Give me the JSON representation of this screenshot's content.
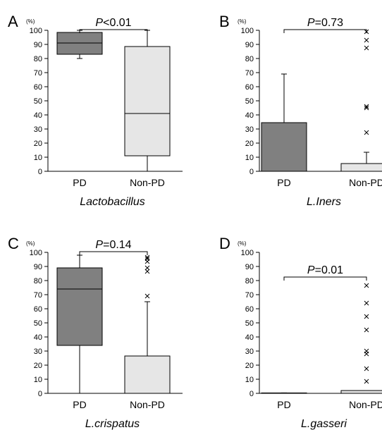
{
  "palette": {
    "pd_fill": "#808080",
    "nonpd_fill": "#e6e6e6",
    "stroke": "#000000"
  },
  "chart_data": [
    {
      "panel_label": "A",
      "type": "box",
      "title": "Lactobacillus",
      "unit_label": "(%)",
      "ylim": [
        0,
        100
      ],
      "yticks": [
        "0",
        "10",
        "20",
        "30",
        "40",
        "50",
        "60",
        "70",
        "80",
        "90",
        "100"
      ],
      "categories": [
        "PD",
        "Non-PD"
      ],
      "p_label": "P<0.01",
      "boxes": [
        {
          "category": "PD",
          "min": 80,
          "q1": 83,
          "median": 91,
          "q3": 98.5,
          "max": 100,
          "outliers": []
        },
        {
          "category": "Non-PD",
          "min": 0,
          "q1": 11,
          "median": 41,
          "q3": 88.5,
          "max": 100,
          "outliers": []
        }
      ]
    },
    {
      "panel_label": "B",
      "type": "box",
      "title": "L.Iners",
      "unit_label": "(%)",
      "ylim": [
        0,
        100
      ],
      "yticks": [
        "0",
        "10",
        "20",
        "30",
        "40",
        "50",
        "60",
        "70",
        "80",
        "90",
        "100"
      ],
      "categories": [
        "PD",
        "Non-PD"
      ],
      "p_label": "P=0.73",
      "boxes": [
        {
          "category": "PD",
          "min": 0,
          "q1": 0,
          "median": 0,
          "q3": 34.5,
          "max": 69,
          "outliers": []
        },
        {
          "category": "Non-PD",
          "min": 0,
          "q1": 0,
          "median": 0,
          "q3": 5.5,
          "max": 13.5,
          "outliers": [
            27.5,
            45,
            46,
            87.5,
            93,
            99
          ]
        }
      ]
    },
    {
      "panel_label": "C",
      "type": "box",
      "title": "L.crispatus",
      "unit_label": "(%)",
      "ylim": [
        0,
        100
      ],
      "yticks": [
        "0",
        "10",
        "20",
        "30",
        "40",
        "50",
        "60",
        "70",
        "80",
        "90",
        "100"
      ],
      "categories": [
        "PD",
        "Non-PD"
      ],
      "p_label": "P=0.14",
      "boxes": [
        {
          "category": "PD",
          "min": 0,
          "q1": 34,
          "median": 74,
          "q3": 89,
          "max": 98,
          "outliers": []
        },
        {
          "category": "Non-PD",
          "min": 0,
          "q1": 0,
          "median": 0,
          "q3": 26.5,
          "max": 65,
          "outliers": [
            69,
            86.5,
            89,
            93.5,
            95.5,
            96.5
          ]
        }
      ]
    },
    {
      "panel_label": "D",
      "type": "box",
      "title": "L.gasseri",
      "unit_label": "(%)",
      "ylim": [
        0,
        100
      ],
      "yticks": [
        "0",
        "10",
        "20",
        "30",
        "40",
        "50",
        "60",
        "70",
        "80",
        "90",
        "100"
      ],
      "categories": [
        "PD",
        "Non-PD"
      ],
      "p_label": "P=0.01",
      "boxes": [
        {
          "category": "PD",
          "min": 0,
          "q1": 0,
          "median": 0,
          "q3": 0.3,
          "max": 0.3,
          "outliers": []
        },
        {
          "category": "Non-PD",
          "min": 0,
          "q1": 0,
          "median": 0,
          "q3": 2,
          "max": 2,
          "outliers": [
            8.5,
            17.5,
            28,
            30,
            45,
            54.5,
            64,
            76.5
          ]
        }
      ]
    }
  ]
}
